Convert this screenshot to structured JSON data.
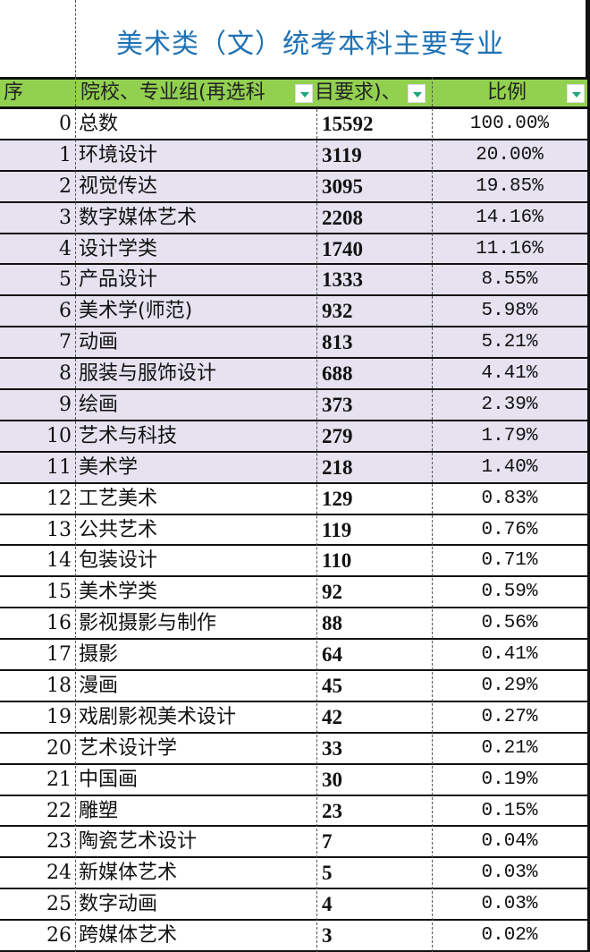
{
  "title": "美术类（文）统考本科主要专业",
  "colors": {
    "header_bg": "#92d050",
    "highlight_row": "#e6e2f0",
    "title": "#1f72b5",
    "dropdown_arrow": "#1fa67a"
  },
  "header": {
    "index": "序",
    "name": "院校、专业组(再选科",
    "count": "目要求)、",
    "ratio": "比例"
  },
  "rows": [
    {
      "idx": "0",
      "name": "总数",
      "count": "15592",
      "ratio": "100.00%",
      "highlight": false
    },
    {
      "idx": "1",
      "name": "环境设计",
      "count": "3119",
      "ratio": "20.00%",
      "highlight": true
    },
    {
      "idx": "2",
      "name": "视觉传达",
      "count": "3095",
      "ratio": "19.85%",
      "highlight": true
    },
    {
      "idx": "3",
      "name": "数字媒体艺术",
      "count": "2208",
      "ratio": "14.16%",
      "highlight": true
    },
    {
      "idx": "4",
      "name": "设计学类",
      "count": "1740",
      "ratio": "11.16%",
      "highlight": true
    },
    {
      "idx": "5",
      "name": "产品设计",
      "count": "1333",
      "ratio": "8.55%",
      "highlight": true
    },
    {
      "idx": "6",
      "name": "美术学(师范)",
      "count": "932",
      "ratio": "5.98%",
      "highlight": true
    },
    {
      "idx": "7",
      "name": "动画",
      "count": "813",
      "ratio": "5.21%",
      "highlight": true
    },
    {
      "idx": "8",
      "name": "服装与服饰设计",
      "count": "688",
      "ratio": "4.41%",
      "highlight": true
    },
    {
      "idx": "9",
      "name": "绘画",
      "count": "373",
      "ratio": "2.39%",
      "highlight": true
    },
    {
      "idx": "10",
      "name": "艺术与科技",
      "count": "279",
      "ratio": "1.79%",
      "highlight": true
    },
    {
      "idx": "11",
      "name": "美术学",
      "count": "218",
      "ratio": "1.40%",
      "highlight": true
    },
    {
      "idx": "12",
      "name": "工艺美术",
      "count": "129",
      "ratio": "0.83%",
      "highlight": false
    },
    {
      "idx": "13",
      "name": "公共艺术",
      "count": "119",
      "ratio": "0.76%",
      "highlight": false
    },
    {
      "idx": "14",
      "name": "包装设计",
      "count": "110",
      "ratio": "0.71%",
      "highlight": false
    },
    {
      "idx": "15",
      "name": "美术学类",
      "count": "92",
      "ratio": "0.59%",
      "highlight": false
    },
    {
      "idx": "16",
      "name": "影视摄影与制作",
      "count": "88",
      "ratio": "0.56%",
      "highlight": false
    },
    {
      "idx": "17",
      "name": "摄影",
      "count": "64",
      "ratio": "0.41%",
      "highlight": false
    },
    {
      "idx": "18",
      "name": "漫画",
      "count": "45",
      "ratio": "0.29%",
      "highlight": false
    },
    {
      "idx": "19",
      "name": "戏剧影视美术设计",
      "count": "42",
      "ratio": "0.27%",
      "highlight": false
    },
    {
      "idx": "20",
      "name": "艺术设计学",
      "count": "33",
      "ratio": "0.21%",
      "highlight": false
    },
    {
      "idx": "21",
      "name": "中国画",
      "count": "30",
      "ratio": "0.19%",
      "highlight": false
    },
    {
      "idx": "22",
      "name": "雕塑",
      "count": "23",
      "ratio": "0.15%",
      "highlight": false
    },
    {
      "idx": "23",
      "name": "陶瓷艺术设计",
      "count": "7",
      "ratio": "0.04%",
      "highlight": false
    },
    {
      "idx": "24",
      "name": "新媒体艺术",
      "count": "5",
      "ratio": "0.03%",
      "highlight": false
    },
    {
      "idx": "25",
      "name": "数字动画",
      "count": "4",
      "ratio": "0.03%",
      "highlight": false
    },
    {
      "idx": "26",
      "name": "跨媒体艺术",
      "count": "3",
      "ratio": "0.02%",
      "highlight": false
    }
  ]
}
